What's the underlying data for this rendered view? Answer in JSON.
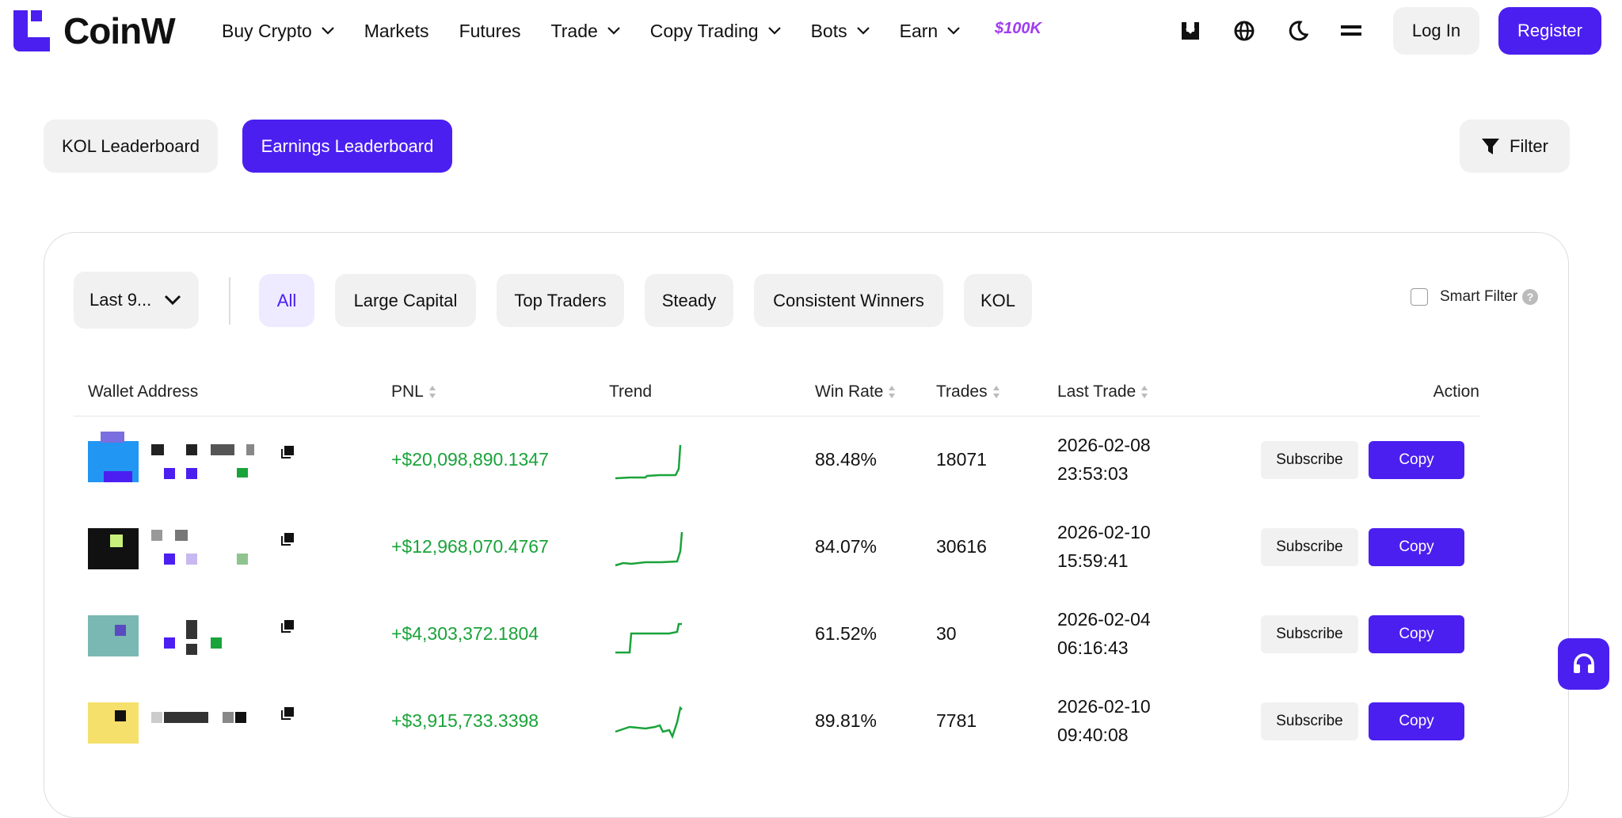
{
  "nav": {
    "logo": "CoinW",
    "items": [
      {
        "label": "Buy Crypto",
        "menu": true
      },
      {
        "label": "Markets",
        "menu": false
      },
      {
        "label": "Futures",
        "menu": false
      },
      {
        "label": "Trade",
        "menu": true
      },
      {
        "label": "Copy Trading",
        "menu": true
      },
      {
        "label": "Bots",
        "menu": true
      },
      {
        "label": "Earn",
        "menu": true
      }
    ],
    "promo": "$100K",
    "login": "Log In",
    "register": "Register"
  },
  "tabs": [
    "KOL Leaderboard",
    "Earnings Leaderboard"
  ],
  "filter": "Filter",
  "period": "Last 9...",
  "chips": [
    "All",
    "Large Capital",
    "Top Traders",
    "Steady",
    "Consistent Winners",
    "KOL"
  ],
  "smart_filter": "Smart Filter",
  "table": {
    "columns": [
      "Wallet Address",
      "PNL",
      "Trend",
      "Win Rate",
      "Trades",
      "Last Trade",
      "Action"
    ],
    "actions": [
      "Subscribe",
      "Copy"
    ],
    "rows": [
      {
        "pnl": "+$20,098,890.1347",
        "win_rate": "88.48%",
        "trades": "18071",
        "date": "2026-02-08",
        "time": "23:53:03"
      },
      {
        "pnl": "+$12,968,070.4767",
        "win_rate": "84.07%",
        "trades": "30616",
        "date": "2026-02-10",
        "time": "15:59:41"
      },
      {
        "pnl": "+$4,303,372.1804",
        "win_rate": "61.52%",
        "trades": "30",
        "date": "2026-02-04",
        "time": "06:16:43"
      },
      {
        "pnl": "+$3,915,733.3398",
        "win_rate": "89.81%",
        "trades": "7781",
        "date": "2026-02-10",
        "time": "09:40:08"
      }
    ]
  }
}
